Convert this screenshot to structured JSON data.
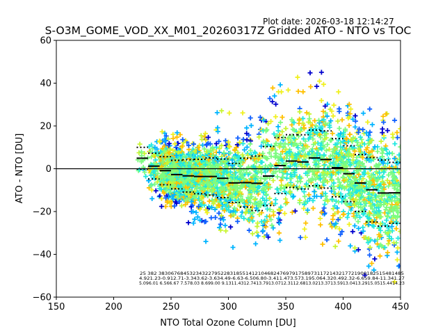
{
  "plot_date": "Plot date: 2026-03-18 12:14:27",
  "title": "S-O3M_GOME_VOD_XX_M01_20260317Z Gridded ATO - NTO vs TOC",
  "colors": {
    "mean_line": "#000000",
    "std_dots": "#000000",
    "zero_line": "#000000",
    "palette": [
      "#0000cd",
      "#1060ff",
      "#00b4ff",
      "#20e8e0",
      "#7cfc80",
      "#c8f532",
      "#f0f020",
      "#ffc000"
    ]
  },
  "chart_data": {
    "type": "scatter",
    "title": "S-O3M_GOME_VOD_XX_M01_20260317Z Gridded ATO - NTO vs TOC",
    "xlabel": "NTO Total Ozone Column [DU]",
    "ylabel": "ATO - NTO [DU]",
    "xlim": [
      150,
      450
    ],
    "ylim": [
      -60,
      60
    ],
    "xticks": [
      "150",
      "200",
      "250",
      "300",
      "350",
      "400",
      "450"
    ],
    "yticks": [
      "−60",
      "−40",
      "−20",
      "0",
      "20",
      "40",
      "60"
    ],
    "xtick_values": [
      150,
      200,
      250,
      300,
      350,
      400,
      450
    ],
    "ytick_values": [
      -60,
      -40,
      -20,
      0,
      20,
      40,
      60
    ],
    "grid": false,
    "marker": "+",
    "bins": {
      "centers": [
        225,
        235,
        245,
        255,
        265,
        275,
        285,
        295,
        305,
        315,
        325,
        335,
        345,
        355,
        365,
        375,
        385,
        395,
        405,
        415,
        425,
        435,
        445
      ],
      "width": 10,
      "counts": [
        25,
        382,
        3830,
        6768,
        4532,
        3432,
        2795,
        2283,
        1855,
        1412,
        1046,
        824,
        769,
        791,
        758,
        973,
        1172,
        1432,
        1772,
        1900,
        1825,
        1548,
        1485
      ],
      "mean": [
        4.92,
        1.23,
        -0.91,
        -2.71,
        -3.34,
        -3.62,
        -3.63,
        -4.49,
        -6.63,
        -6.5,
        -6.8,
        -3.41,
        1.47,
        3.57,
        3.19,
        5.06,
        4.32,
        0.49,
        -2.32,
        -6.65,
        -9.84,
        -11.34,
        -11.27
      ],
      "std": [
        5.09,
        6.01,
        6.56,
        6.67,
        7.57,
        8.03,
        8.69,
        9.0,
        9.13,
        11.43,
        12.74,
        13.79,
        13.07,
        12.31,
        12.68,
        13.02,
        13.37,
        13.59,
        13.04,
        13.29,
        15.05,
        15.44,
        14.23
      ]
    },
    "stats_rows": [
      "25  382 3830676845323432279522831855141210468247697917589731172143217721900182515481485",
      "4.921.23-0.912.71-3.343.62-3.634.49-6.63-6.506.80-3.411.473.573.195.064.320.492.32-6.659.84-11.341.27",
      "5.096.01 6.566.67 7.578.03 8.699.00 9.1311.4312.7413.7913.0712.3112.6813.0213.3713.5913.0413.2915.0515.4414.23"
    ]
  }
}
